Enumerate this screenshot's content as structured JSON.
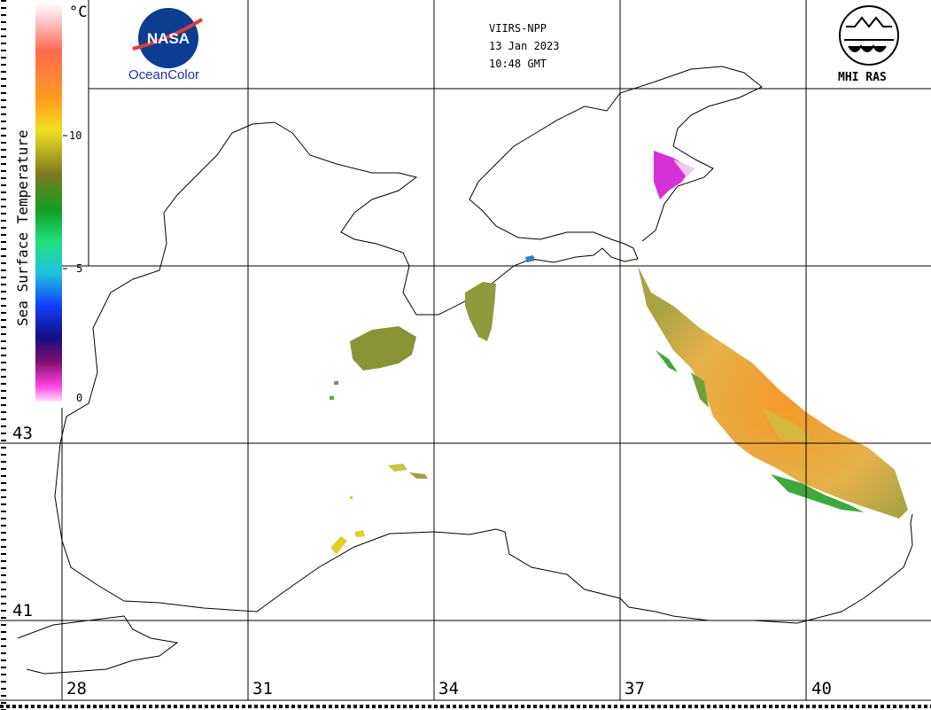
{
  "header": {
    "satellite": "VIIRS-NPP",
    "date": "13 Jan 2023",
    "time": "10:48 GMT"
  },
  "logos": {
    "left": {
      "name": "NASA",
      "caption": "OceanColor"
    },
    "right": {
      "name": "MHI RAS",
      "caption": "MHI RAS"
    }
  },
  "colorbar": {
    "title": "Sea Surface Temperature",
    "unit": "°C",
    "ticks": [
      "10",
      "5",
      "0"
    ],
    "range": [
      0,
      15
    ]
  },
  "axes": {
    "longitude_labels": [
      "28",
      "31",
      "34",
      "37",
      "40"
    ],
    "latitude_labels": [
      "43",
      "41"
    ]
  },
  "colors": {
    "land_background": "#ffffff",
    "coastline": "#000000",
    "grid": "#000000",
    "sst_warm": "#f0a030",
    "sst_mid": "#a0a040",
    "sst_cool": "#40b040",
    "sst_cold": "#d020d0"
  }
}
